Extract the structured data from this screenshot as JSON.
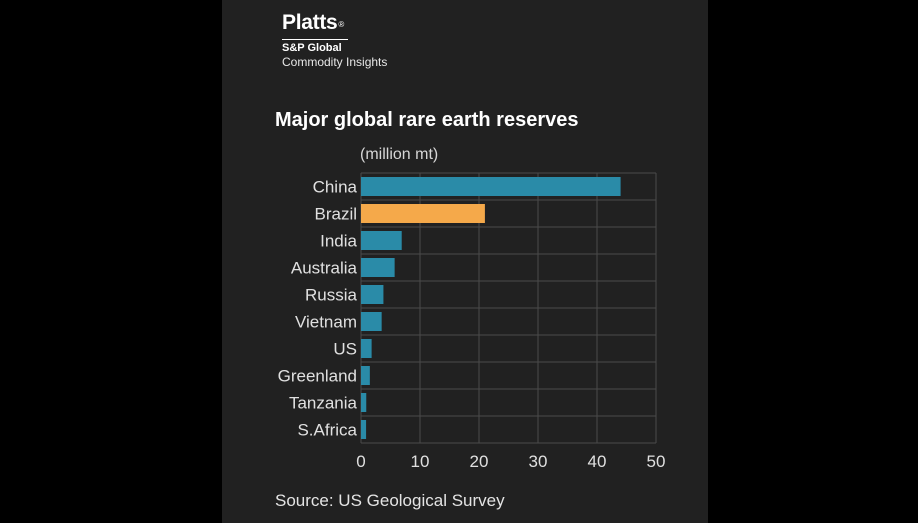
{
  "branding": {
    "name": "Platts",
    "mark": "®",
    "parent": "S&P Global",
    "division": "Commodity Insights"
  },
  "source": "Source: US Geological Survey",
  "colors": {
    "background": "#212121",
    "default_bar": "#2a8ba8",
    "highlight_bar": "#f5a94a",
    "grid": "#4a4a4a",
    "text": "#e0e0e0"
  },
  "chart_data": {
    "type": "bar",
    "orientation": "horizontal",
    "title": "Major global rare earth reserves",
    "unit_label": "(million mt)",
    "categories": [
      "China",
      "Brazil",
      "India",
      "Australia",
      "Russia",
      "Vietnam",
      "US",
      "Greenland",
      "Tanzania",
      "S.Africa"
    ],
    "values": [
      44,
      21,
      6.9,
      5.7,
      3.8,
      3.5,
      1.8,
      1.5,
      0.89,
      0.86
    ],
    "highlight": [
      "Brazil"
    ],
    "xlim": [
      0,
      50
    ],
    "xticks": [
      0,
      10,
      20,
      30,
      40,
      50
    ],
    "grid": true,
    "xlabel": "",
    "ylabel": ""
  }
}
